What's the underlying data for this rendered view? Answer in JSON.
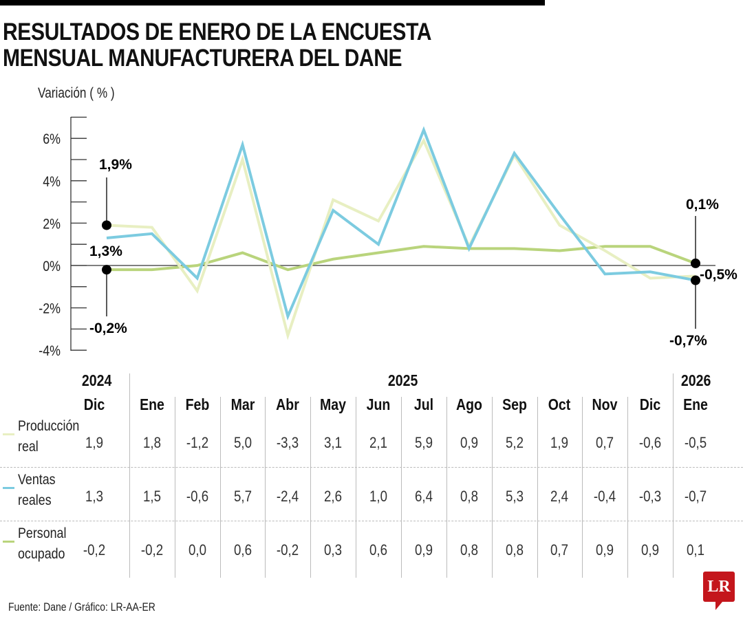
{
  "header": {
    "title_line1": "RESULTADOS DE ENERO DE LA ENCUESTA",
    "title_line2": "MENSUAL MANUFACTURERA DEL DANE"
  },
  "chart_data": {
    "type": "line",
    "title": "RESULTADOS DE ENERO DE LA ENCUESTA MENSUAL MANUFACTURERA DEL DANE",
    "ylabel": "Variación ( % )",
    "xlabel": "",
    "ylim": [
      -4,
      7
    ],
    "yticks": [
      -4,
      -2,
      0,
      2,
      4,
      6
    ],
    "ytick_labels": [
      "-4%",
      "-2%",
      "0%",
      "2%",
      "4%",
      "6%"
    ],
    "years": [
      {
        "label": "2024",
        "span": "Dic"
      },
      {
        "label": "2025",
        "span": "Ene-Dic"
      },
      {
        "label": "2026",
        "span": "Ene"
      }
    ],
    "categories": [
      "Dic",
      "Ene",
      "Feb",
      "Mar",
      "Abr",
      "May",
      "Jun",
      "Jul",
      "Ago",
      "Sep",
      "Oct",
      "Nov",
      "Dic",
      "Ene"
    ],
    "series": [
      {
        "name": "Producción real",
        "label_line1": "Producción",
        "label_line2": "real",
        "color": "#e8efc2",
        "values": [
          1.9,
          1.8,
          -1.2,
          5.0,
          -3.3,
          3.1,
          2.1,
          5.9,
          0.9,
          5.2,
          1.9,
          0.7,
          -0.6,
          -0.5
        ],
        "display": [
          "1,9",
          "1,8",
          "-1,2",
          "5,0",
          "-3,3",
          "3,1",
          "2,1",
          "5,9",
          "0,9",
          "5,2",
          "1,9",
          "0,7",
          "-0,6",
          "-0,5"
        ]
      },
      {
        "name": "Ventas reales",
        "label_line1": "Ventas",
        "label_line2": "reales",
        "color": "#7ccbe0",
        "values": [
          1.3,
          1.5,
          -0.6,
          5.7,
          -2.4,
          2.6,
          1.0,
          6.4,
          0.8,
          5.3,
          2.4,
          -0.4,
          -0.3,
          -0.7
        ],
        "display": [
          "1,3",
          "1,5",
          "-0,6",
          "5,7",
          "-2,4",
          "2,6",
          "1,0",
          "6,4",
          "0,8",
          "5,3",
          "2,4",
          "-0,4",
          "-0,3",
          "-0,7"
        ]
      },
      {
        "name": "Personal ocupado",
        "label_line1": "Personal",
        "label_line2": "ocupado",
        "color": "#b9d47c",
        "values": [
          -0.2,
          -0.2,
          0.0,
          0.6,
          -0.2,
          0.3,
          0.6,
          0.9,
          0.8,
          0.8,
          0.7,
          0.9,
          0.9,
          0.1
        ],
        "display": [
          "-0,2",
          "-0,2",
          "0,0",
          "0,6",
          "-0,2",
          "0,3",
          "0,6",
          "0,9",
          "0,8",
          "0,8",
          "0,7",
          "0,9",
          "0,9",
          "0,1"
        ]
      }
    ],
    "annotations": {
      "start": [
        {
          "series": "Producción real",
          "text": "1,9%"
        },
        {
          "series": "Ventas reales",
          "text": "1,3%"
        },
        {
          "series": "Personal ocupado",
          "text": "-0,2%"
        }
      ],
      "end": [
        {
          "series": "Personal ocupado",
          "text": "0,1%"
        },
        {
          "series": "Producción real",
          "text": "-0,5%"
        },
        {
          "series": "Ventas reales",
          "text": "-0,7%"
        }
      ]
    },
    "grid": false,
    "legend": "left table rows"
  },
  "footer": {
    "source": "Fuente: Dane / Gráfico: LR-AA-ER",
    "logo": "LR"
  }
}
